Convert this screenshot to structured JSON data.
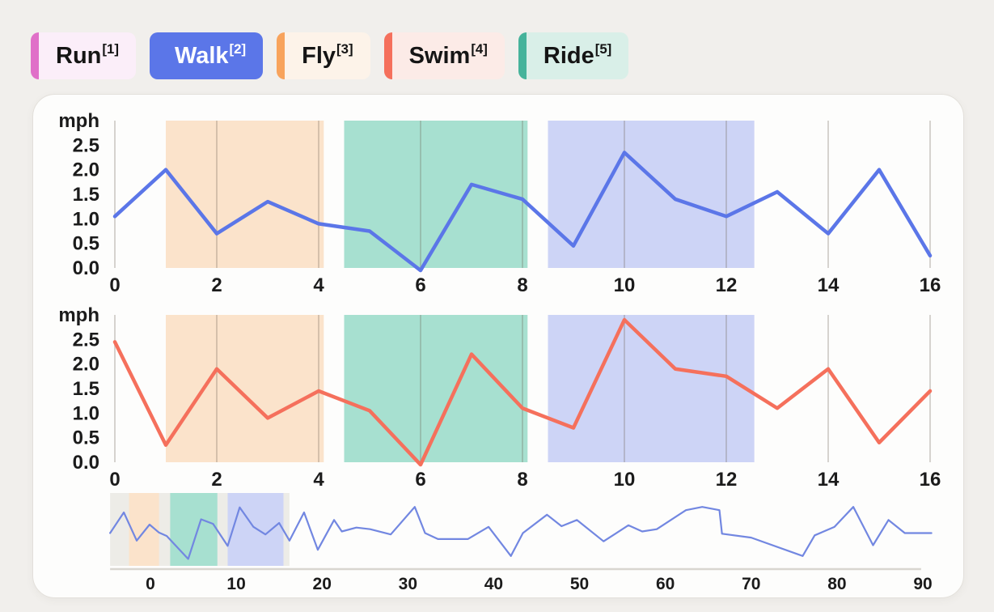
{
  "theme": {
    "page_bg": "#f1efec",
    "card_bg": "#fdfdfc",
    "card_border": "#e3e0db",
    "grid_color": "rgba(110,100,85,0.27)",
    "text_color": "#1b1b1b"
  },
  "legend": {
    "items": [
      {
        "name": "Run",
        "sup": "[1]",
        "color": "#e070c8",
        "bg": "#fbeef9",
        "active": false
      },
      {
        "name": "Walk",
        "sup": "[2]",
        "color": "#5b76e8",
        "bg": "#5b76e8",
        "active": true
      },
      {
        "name": "Fly",
        "sup": "[3]",
        "color": "#f8a35c",
        "bg": "#fdf3e9",
        "active": false
      },
      {
        "name": "Swim",
        "sup": "[4]",
        "color": "#f5705c",
        "bg": "#fcebe7",
        "active": false
      },
      {
        "name": "Ride",
        "sup": "[5]",
        "color": "#45b39b",
        "bg": "#d9efe8",
        "active": false
      }
    ]
  },
  "chart_data": [
    {
      "type": "line",
      "name": "walk-speed",
      "ylabel": "mph",
      "line_color": "#5b76e8",
      "xticks": [
        "0",
        "2",
        "4",
        "6",
        "8",
        "10",
        "12",
        "14",
        "16"
      ],
      "yticks": [
        "2.5",
        "2.0",
        "1.5",
        "1.0",
        "0.5",
        "0.0"
      ],
      "xlim": [
        0,
        16
      ],
      "ylim": [
        0,
        3
      ],
      "grid": "vertical-only",
      "regions": [
        {
          "label": "fly",
          "color": "#fbe3cb",
          "x0": 1.0,
          "x1": 4.1
        },
        {
          "label": "ride",
          "color": "#a7e0d0",
          "x0": 4.5,
          "x1": 8.1
        },
        {
          "label": "walk",
          "color": "#cdd4f6",
          "x0": 8.5,
          "x1": 12.55
        }
      ],
      "x": [
        0,
        1,
        2,
        3,
        4,
        5,
        6,
        7,
        8,
        9,
        10,
        11,
        12,
        13,
        14,
        15,
        16
      ],
      "y": [
        1.05,
        2.0,
        0.7,
        1.35,
        0.9,
        0.75,
        -0.05,
        1.7,
        1.4,
        0.45,
        2.35,
        1.4,
        1.05,
        1.55,
        0.7,
        2.0,
        0.25
      ]
    },
    {
      "type": "line",
      "name": "swim-speed",
      "ylabel": "mph",
      "line_color": "#f5705c",
      "xticks": [
        "0",
        "2",
        "4",
        "6",
        "8",
        "10",
        "12",
        "14",
        "16"
      ],
      "yticks": [
        "2.5",
        "2.0",
        "1.5",
        "1.0",
        "0.5",
        "0.0"
      ],
      "xlim": [
        0,
        16
      ],
      "ylim": [
        0,
        3
      ],
      "grid": "vertical-only",
      "regions": [
        {
          "label": "fly",
          "color": "#fbe3cb",
          "x0": 1.0,
          "x1": 4.1
        },
        {
          "label": "ride",
          "color": "#a7e0d0",
          "x0": 4.5,
          "x1": 8.1
        },
        {
          "label": "walk",
          "color": "#cdd4f6",
          "x0": 8.5,
          "x1": 12.55
        }
      ],
      "x": [
        0,
        1,
        2,
        3,
        4,
        5,
        6,
        7,
        8,
        9,
        10,
        11,
        12,
        13,
        14,
        15,
        16
      ],
      "y": [
        2.45,
        0.35,
        1.9,
        0.9,
        1.45,
        1.05,
        -0.05,
        2.2,
        1.1,
        0.7,
        2.9,
        1.9,
        1.75,
        1.1,
        1.9,
        0.4,
        1.45
      ]
    },
    {
      "type": "line",
      "name": "overview-timeline",
      "line_color": "#7287e1",
      "xticks": [
        "0",
        "10",
        "20",
        "30",
        "40",
        "50",
        "60",
        "70",
        "80",
        "90"
      ],
      "xlim": [
        -4.8,
        92.5
      ],
      "ylim": [
        0,
        3
      ],
      "window": {
        "x0": -4.7,
        "x1": 16.2,
        "color": "#edece7"
      },
      "regions": [
        {
          "label": "fly",
          "color": "#fbe3cb",
          "x0": -2.5,
          "x1": 1.0
        },
        {
          "label": "ride",
          "color": "#a7e0d0",
          "x0": 2.3,
          "x1": 7.8
        },
        {
          "label": "walk",
          "color": "#cdd4f6",
          "x0": 9.0,
          "x1": 15.5
        }
      ],
      "baseline": {
        "x0": -4.7,
        "x1": 89.8
      },
      "points": [
        [
          -4.7,
          1.43
        ],
        [
          -3.1,
          2.33
        ],
        [
          -1.6,
          1.1
        ],
        [
          -0.1,
          1.8
        ],
        [
          1.0,
          1.45
        ],
        [
          1.9,
          1.3
        ],
        [
          4.4,
          0.3
        ],
        [
          5.9,
          2.03
        ],
        [
          7.3,
          1.83
        ],
        [
          9.0,
          0.87
        ],
        [
          10.4,
          2.55
        ],
        [
          12.0,
          1.7
        ],
        [
          13.4,
          1.37
        ],
        [
          15.0,
          1.87
        ],
        [
          16.2,
          1.1
        ],
        [
          17.9,
          2.33
        ],
        [
          19.5,
          0.7
        ],
        [
          21.4,
          2.0
        ],
        [
          22.3,
          1.5
        ],
        [
          24.0,
          1.67
        ],
        [
          25.6,
          1.6
        ],
        [
          28.0,
          1.37
        ],
        [
          30.8,
          2.57
        ],
        [
          32.0,
          1.43
        ],
        [
          33.5,
          1.17
        ],
        [
          37.0,
          1.17
        ],
        [
          39.4,
          1.7
        ],
        [
          42.0,
          0.43
        ],
        [
          43.4,
          1.43
        ],
        [
          46.2,
          2.23
        ],
        [
          47.9,
          1.73
        ],
        [
          49.7,
          2.0
        ],
        [
          52.8,
          1.07
        ],
        [
          55.7,
          1.77
        ],
        [
          57.3,
          1.5
        ],
        [
          59.0,
          1.6
        ],
        [
          62.4,
          2.43
        ],
        [
          64.3,
          2.57
        ],
        [
          66.3,
          2.43
        ],
        [
          66.6,
          1.4
        ],
        [
          70.0,
          1.23
        ],
        [
          76.0,
          0.43
        ],
        [
          77.4,
          1.33
        ],
        [
          79.7,
          1.7
        ],
        [
          81.9,
          2.57
        ],
        [
          84.2,
          0.9
        ],
        [
          86.0,
          2.0
        ],
        [
          87.9,
          1.43
        ],
        [
          91.0,
          1.43
        ]
      ]
    }
  ]
}
